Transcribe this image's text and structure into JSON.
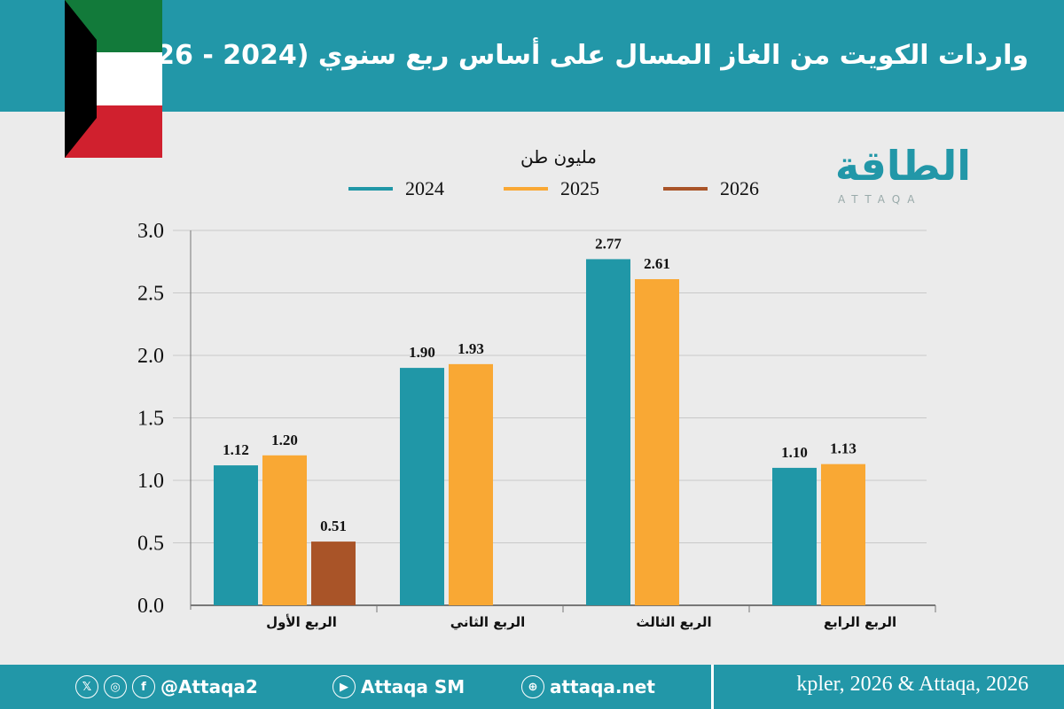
{
  "header": {
    "title": "واردات الكويت من الغاز المسال على أساس ربع سنوي (2024 - 2026)"
  },
  "logo": {
    "ar": "الطاقة",
    "en": "ATTAQA"
  },
  "footer": {
    "social_handle": "@Attaqa2",
    "youtube": "Attaqa SM",
    "website": "attaqa.net",
    "source": "kpler, 2026 & Attaqa, 2026"
  },
  "chart_data": {
    "type": "bar",
    "unit_label": "مليون طن",
    "categories": [
      "الربع الأول",
      "الربع الثاني",
      "الربع الثالث",
      "الربع الرابع"
    ],
    "series": [
      {
        "name": "2024",
        "color": "#2097a7",
        "values": [
          1.12,
          1.9,
          2.77,
          1.1
        ]
      },
      {
        "name": "2025",
        "color": "#f9a834",
        "values": [
          1.2,
          1.93,
          2.61,
          1.13
        ]
      },
      {
        "name": "2026",
        "color": "#a95428",
        "values": [
          0.51,
          null,
          null,
          null
        ]
      }
    ],
    "yticks": [
      "0.0",
      "0.5",
      "1.0",
      "1.5",
      "2.0",
      "2.5",
      "3.0"
    ],
    "ylim": [
      0,
      3
    ],
    "grid": true,
    "legend": "top"
  }
}
